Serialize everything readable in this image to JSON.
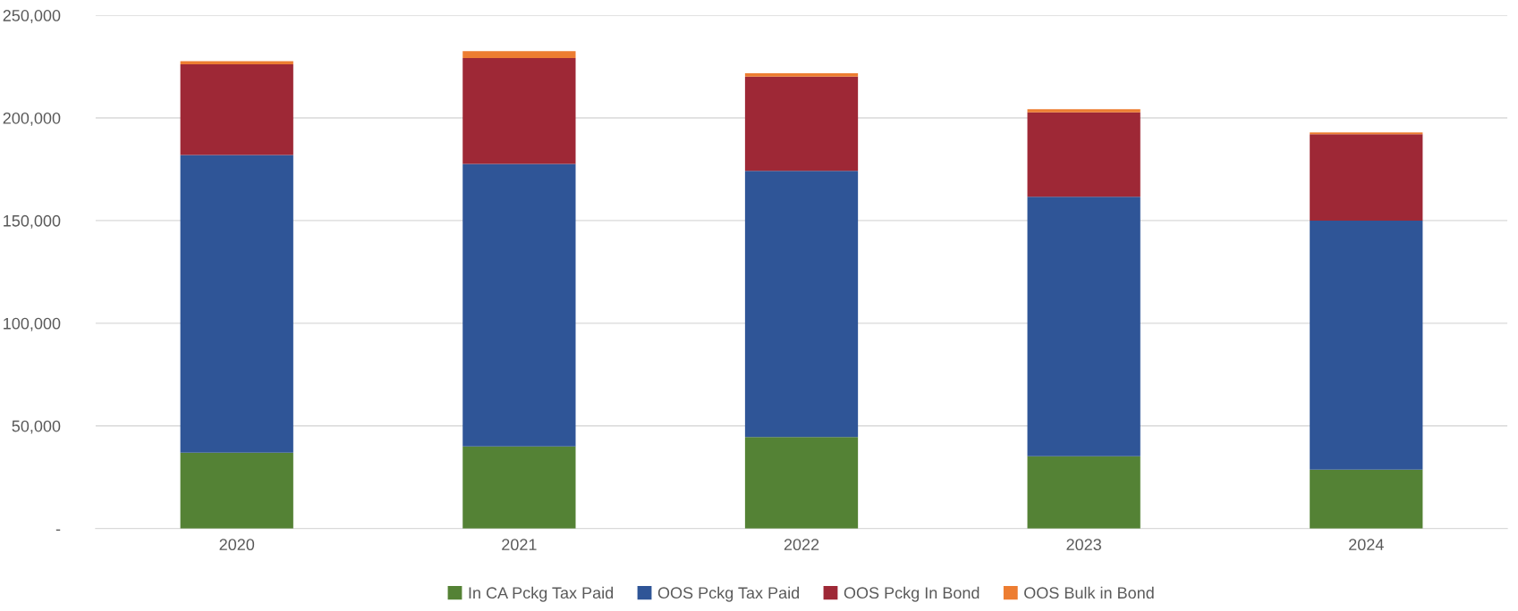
{
  "chart_data": {
    "type": "bar",
    "stacked": true,
    "categories": [
      "2020",
      "2021",
      "2022",
      "2023",
      "2024"
    ],
    "series": [
      {
        "name": "In CA Pckg Tax Paid",
        "color": "#548235",
        "values": [
          37000,
          40000,
          44600,
          35200,
          28700
        ]
      },
      {
        "name": "OOS Pckg Tax Paid",
        "color": "#2f5597",
        "values": [
          144900,
          137600,
          129600,
          126400,
          121300
        ]
      },
      {
        "name": "OOS Pckg In Bond",
        "color": "#9e2836",
        "values": [
          44200,
          51600,
          45900,
          41100,
          42100
        ]
      },
      {
        "name": "OOS Bulk in Bond",
        "color": "#ed7d31",
        "values": [
          1500,
          3300,
          1700,
          1600,
          800
        ]
      }
    ],
    "ylim": [
      0,
      250000
    ],
    "yticks": [
      {
        "value": 0,
        "label": "-"
      },
      {
        "value": 50000,
        "label": "50,000"
      },
      {
        "value": 100000,
        "label": "100,000"
      },
      {
        "value": 150000,
        "label": "150,000"
      },
      {
        "value": 200000,
        "label": "200,000"
      },
      {
        "value": 250000,
        "label": "250,000"
      }
    ],
    "grid": "y",
    "legend": "bottom"
  }
}
